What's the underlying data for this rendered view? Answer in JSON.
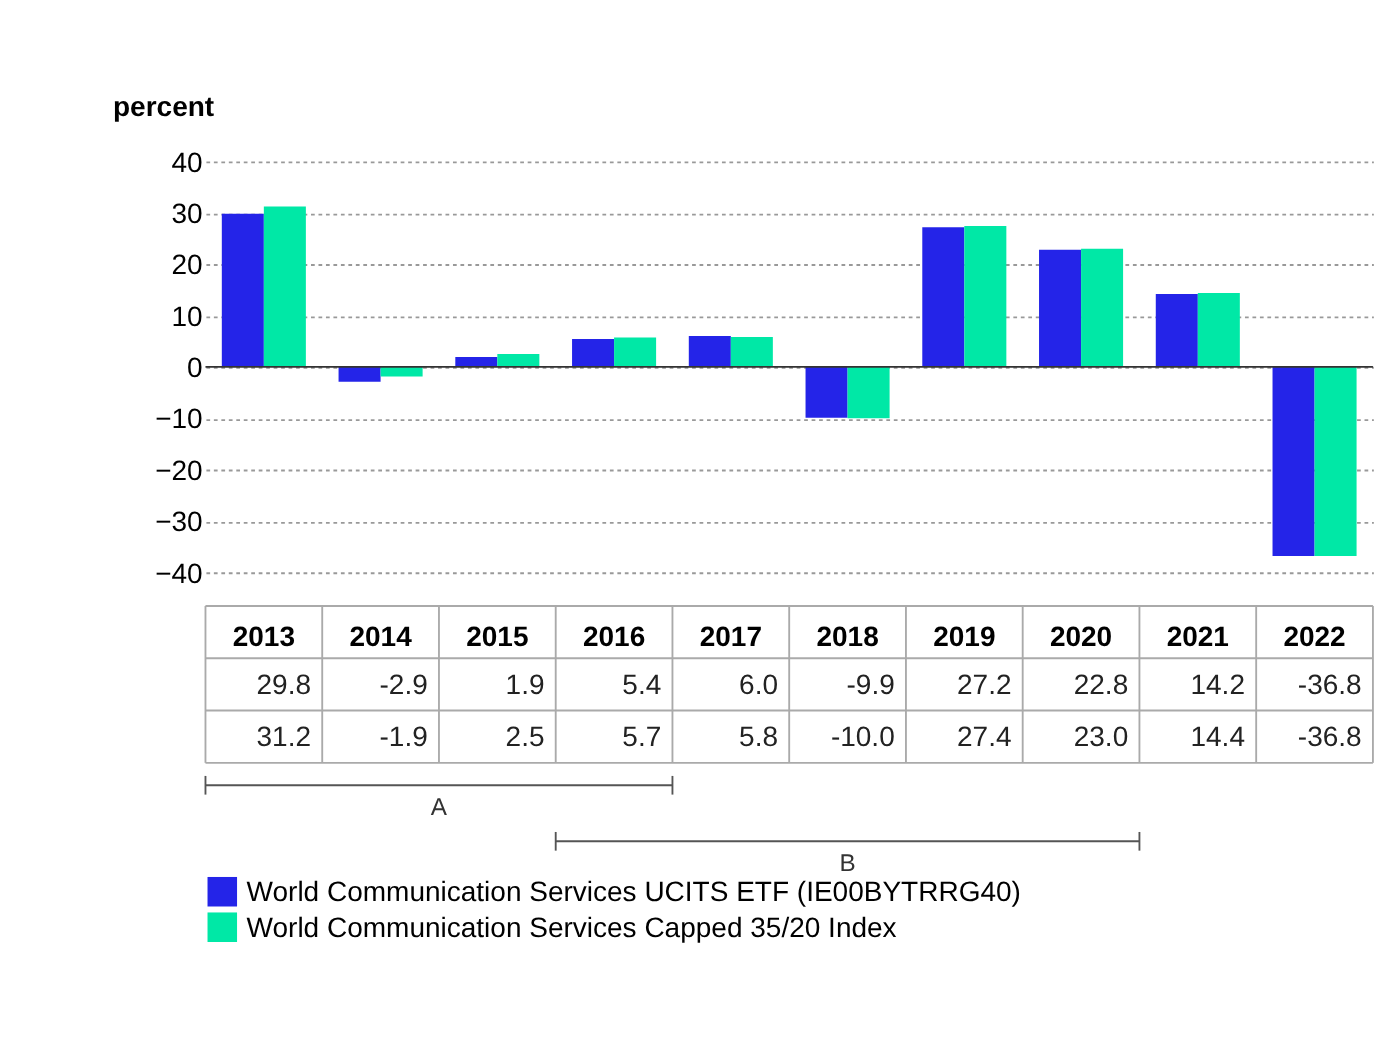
{
  "chart_data": {
    "type": "bar",
    "ylabel": "percent",
    "categories": [
      "2013",
      "2014",
      "2015",
      "2016",
      "2017",
      "2018",
      "2019",
      "2020",
      "2021",
      "2022"
    ],
    "series": [
      {
        "name": "World Communication Services UCITS ETF (IE00BYTRRG40)",
        "color": "#2424e8",
        "values": [
          29.8,
          -2.9,
          1.9,
          5.4,
          6.0,
          -9.9,
          27.2,
          22.8,
          14.2,
          -36.8
        ],
        "value_labels": [
          "29.8",
          "-2.9",
          "1.9",
          "5.4",
          "6.0",
          "-9.9",
          "27.2",
          "22.8",
          "14.2",
          "-36.8"
        ]
      },
      {
        "name": "World Communication Services Capped 35/20 Index",
        "color": "#00e8a6",
        "values": [
          31.2,
          -1.9,
          2.5,
          5.7,
          5.8,
          -10.0,
          27.4,
          23.0,
          14.4,
          -36.8
        ],
        "value_labels": [
          "31.2",
          "-1.9",
          "2.5",
          "5.7",
          "5.8",
          "-10.0",
          "27.4",
          "23.0",
          "14.4",
          "-36.8"
        ]
      }
    ],
    "ylim": [
      -40,
      40
    ],
    "yticks": [
      -40,
      -30,
      -20,
      -10,
      0,
      10,
      20,
      30,
      40
    ],
    "grid": "y",
    "legend": "bottom",
    "annotations": [
      "A",
      "B"
    ]
  }
}
